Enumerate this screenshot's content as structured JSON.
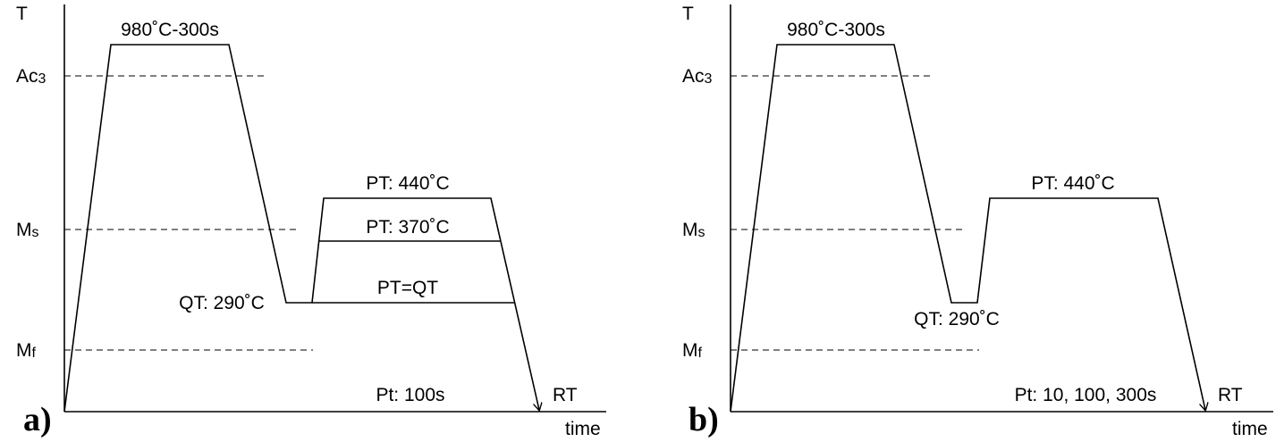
{
  "panels": [
    {
      "id": "a",
      "panel_label": "a)",
      "y_axis_label": "T",
      "x_axis_label": "time",
      "levels": [
        {
          "main": "Ac",
          "sub": "3"
        },
        {
          "main": "M",
          "sub": "s"
        },
        {
          "main": "M",
          "sub": "f"
        }
      ],
      "austenitize_label": "980˚C-300s",
      "quench_label": "QT: 290˚C",
      "partition_labels": [
        "PT: 440˚C",
        "PT: 370˚C",
        "PT=QT"
      ],
      "time_label": "Pt: 100s",
      "end_label": "RT"
    },
    {
      "id": "b",
      "panel_label": "b)",
      "y_axis_label": "T",
      "x_axis_label": "time",
      "levels": [
        {
          "main": "Ac",
          "sub": "3"
        },
        {
          "main": "M",
          "sub": "s"
        },
        {
          "main": "M",
          "sub": "f"
        }
      ],
      "austenitize_label": "980˚C-300s",
      "quench_label": "QT: 290˚C",
      "partition_labels": [
        "PT: 440˚C"
      ],
      "time_label": "Pt: 10, 100, 300s",
      "end_label": "RT"
    }
  ]
}
